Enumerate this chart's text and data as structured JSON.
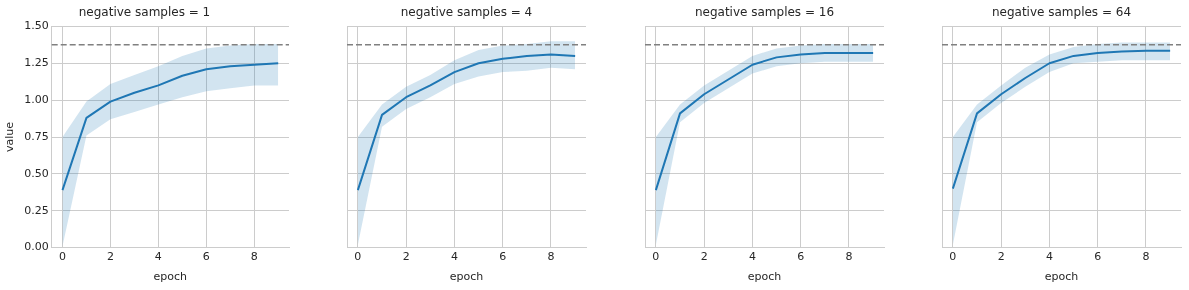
{
  "chart_data": [
    {
      "type": "line",
      "title": "negative samples = 1",
      "xlabel": "epoch",
      "ylabel": "value",
      "x": [
        0,
        1,
        2,
        3,
        4,
        5,
        6,
        7,
        8,
        9
      ],
      "xlim": [
        -0.45,
        9.45
      ],
      "xticks": [
        0,
        2,
        4,
        6,
        8
      ],
      "ylim": [
        0,
        1.5
      ],
      "yticks": [
        {
          "value": 0,
          "label": "0.00"
        },
        0.25,
        {
          "value": 0.5,
          "label": "0.50"
        },
        0.75,
        {
          "value": 1,
          "label": "1.00"
        },
        1.25,
        {
          "value": 1.5,
          "label": "1.50"
        }
      ],
      "grid": true,
      "marker": "none",
      "line_style": "solid",
      "series": [
        {
          "color": "#1f77b4",
          "values": [
            0.39,
            0.88,
            0.99,
            1.05,
            1.1,
            1.165,
            1.21,
            1.23,
            1.24,
            1.25
          ],
          "lower": [
            0.01,
            0.76,
            0.87,
            0.92,
            0.97,
            1.02,
            1.06,
            1.08,
            1.1,
            1.1
          ],
          "upper": [
            0.75,
            0.99,
            1.11,
            1.17,
            1.23,
            1.3,
            1.35,
            1.37,
            1.38,
            1.38
          ]
        }
      ],
      "ref_lines": [
        {
          "axis": "y",
          "value": 1.375,
          "color": "#808080",
          "line_style": "dashed"
        }
      ]
    },
    {
      "type": "line",
      "title": "negative samples = 4",
      "xlabel": "epoch",
      "x": [
        0,
        1,
        2,
        3,
        4,
        5,
        6,
        7,
        8,
        9
      ],
      "xlim": [
        -0.45,
        9.45
      ],
      "xticks": [
        0,
        2,
        4,
        6,
        8
      ],
      "ylim": [
        0,
        1.5
      ],
      "yticks": [
        0,
        0.25,
        0.5,
        0.75,
        1,
        1.25,
        1.5
      ],
      "grid": true,
      "marker": "none",
      "line_style": "solid",
      "tick_labels": "x",
      "series": [
        {
          "color": "#1f77b4",
          "values": [
            0.39,
            0.9,
            1.02,
            1.1,
            1.19,
            1.25,
            1.28,
            1.3,
            1.31,
            1.3
          ],
          "lower": [
            0.02,
            0.82,
            0.94,
            1.02,
            1.11,
            1.16,
            1.19,
            1.2,
            1.22,
            1.21
          ],
          "upper": [
            0.75,
            0.97,
            1.09,
            1.17,
            1.27,
            1.34,
            1.37,
            1.38,
            1.4,
            1.4
          ]
        }
      ],
      "ref_lines": [
        {
          "axis": "y",
          "value": 1.375,
          "color": "#808080",
          "line_style": "dashed"
        }
      ]
    },
    {
      "type": "line",
      "title": "negative samples = 16",
      "xlabel": "epoch",
      "x": [
        0,
        1,
        2,
        3,
        4,
        5,
        6,
        7,
        8,
        9
      ],
      "xlim": [
        -0.45,
        9.45
      ],
      "xticks": [
        0,
        2,
        4,
        6,
        8
      ],
      "ylim": [
        0,
        1.5
      ],
      "yticks": [
        0,
        0.25,
        0.5,
        0.75,
        1,
        1.25,
        1.5
      ],
      "grid": true,
      "marker": "none",
      "line_style": "solid",
      "tick_labels": "x",
      "series": [
        {
          "color": "#1f77b4",
          "values": [
            0.39,
            0.91,
            1.04,
            1.14,
            1.24,
            1.29,
            1.31,
            1.32,
            1.32,
            1.32
          ],
          "lower": [
            0.02,
            0.85,
            0.98,
            1.08,
            1.18,
            1.23,
            1.25,
            1.26,
            1.26,
            1.26
          ],
          "upper": [
            0.75,
            0.97,
            1.1,
            1.2,
            1.3,
            1.35,
            1.37,
            1.38,
            1.38,
            1.38
          ]
        }
      ],
      "ref_lines": [
        {
          "axis": "y",
          "value": 1.375,
          "color": "#808080",
          "line_style": "dashed"
        }
      ]
    },
    {
      "type": "line",
      "title": "negative samples = 64",
      "xlabel": "epoch",
      "x": [
        0,
        1,
        2,
        3,
        4,
        5,
        6,
        7,
        8,
        9
      ],
      "xlim": [
        -0.45,
        9.45
      ],
      "xticks": [
        0,
        2,
        4,
        6,
        8
      ],
      "ylim": [
        0,
        1.5
      ],
      "yticks": [
        0,
        0.25,
        0.5,
        0.75,
        1,
        1.25,
        1.5
      ],
      "grid": true,
      "marker": "none",
      "line_style": "solid",
      "tick_labels": "x",
      "series": [
        {
          "color": "#1f77b4",
          "values": [
            0.4,
            0.91,
            1.04,
            1.15,
            1.25,
            1.3,
            1.32,
            1.33,
            1.335,
            1.335
          ],
          "lower": [
            0.02,
            0.85,
            0.98,
            1.09,
            1.19,
            1.25,
            1.26,
            1.27,
            1.27,
            1.27
          ],
          "upper": [
            0.75,
            0.97,
            1.1,
            1.22,
            1.31,
            1.36,
            1.38,
            1.39,
            1.39,
            1.39
          ]
        }
      ],
      "ref_lines": [
        {
          "axis": "y",
          "value": 1.375,
          "color": "#808080",
          "line_style": "dashed"
        }
      ]
    }
  ]
}
